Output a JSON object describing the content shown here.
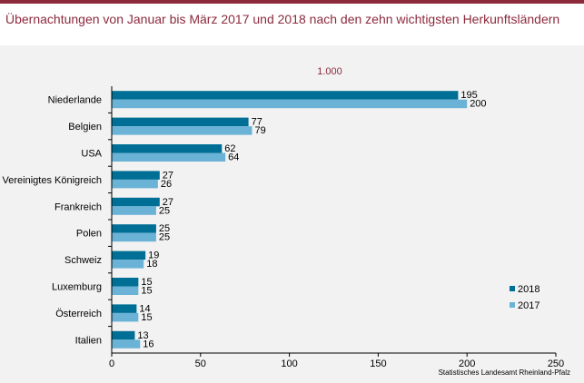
{
  "title": "Übernachtungen von Januar bis März 2017 und 2018 nach den zehn wichtigsten Herkunftsländern",
  "unit_label": "1.000",
  "source": "Statistisches Landesamt Rheinland-Pfalz",
  "colors": {
    "brand": "#8c2a3c",
    "series_2018": "#006f95",
    "series_2017": "#6bb3d6"
  },
  "chart_data": {
    "type": "bar",
    "orientation": "horizontal",
    "title": "Übernachtungen von Januar bis März 2017 und 2018 nach den zehn wichtigsten Herkunftsländern",
    "categories": [
      "Niederlande",
      "Belgien",
      "USA",
      "Vereinigtes Königreich",
      "Frankreich",
      "Polen",
      "Schweiz",
      "Luxemburg",
      "Österreich",
      "Italien"
    ],
    "series": [
      {
        "name": "2018",
        "values": [
          195,
          77,
          62,
          27,
          27,
          25,
          19,
          15,
          14,
          13
        ]
      },
      {
        "name": "2017",
        "values": [
          200,
          79,
          64,
          26,
          25,
          25,
          18,
          15,
          15,
          16
        ]
      }
    ],
    "xlim": [
      0,
      250
    ],
    "xticks": [
      0,
      50,
      100,
      150,
      200,
      250
    ],
    "legend_position": "bottom-right",
    "grid": false
  }
}
